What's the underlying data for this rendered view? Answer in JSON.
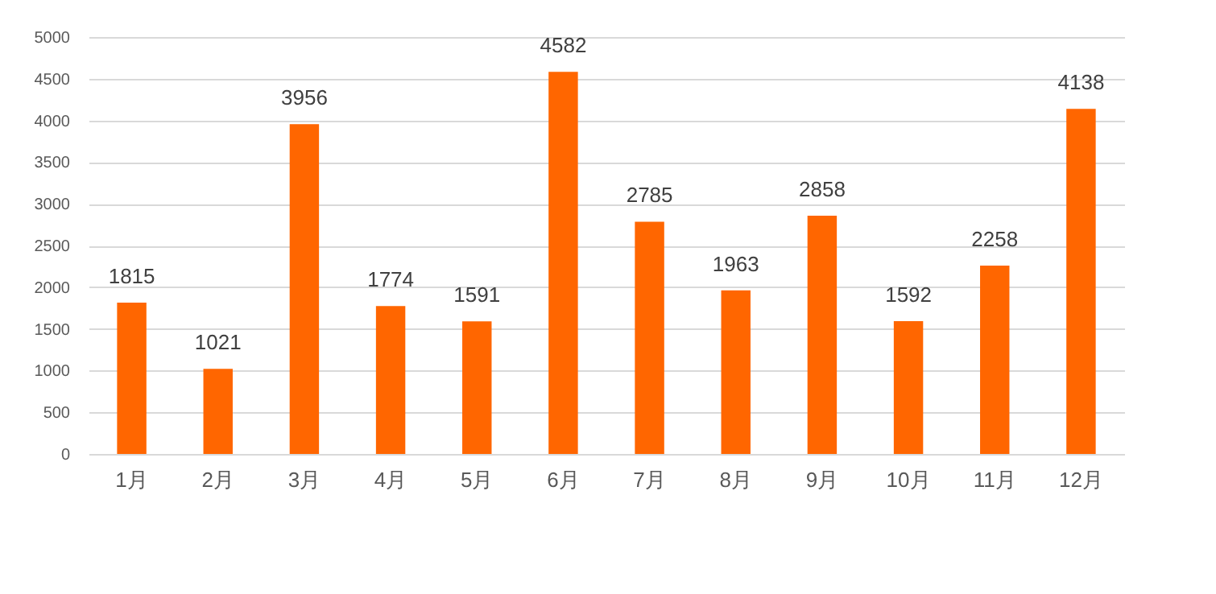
{
  "chart_data": {
    "type": "bar",
    "categories": [
      "1月",
      "2月",
      "3月",
      "4月",
      "5月",
      "6月",
      "7月",
      "8月",
      "9月",
      "10月",
      "11月",
      "12月"
    ],
    "values": [
      1815,
      1021,
      3956,
      1774,
      1591,
      4582,
      2785,
      1963,
      2858,
      1592,
      2258,
      4138
    ],
    "color": "#ff6600",
    "ylim": [
      0,
      5000
    ],
    "yticks": [
      0,
      500,
      1000,
      1500,
      2000,
      2500,
      3000,
      3500,
      4000,
      4500,
      5000
    ],
    "grid": "y",
    "data_labels": true
  }
}
